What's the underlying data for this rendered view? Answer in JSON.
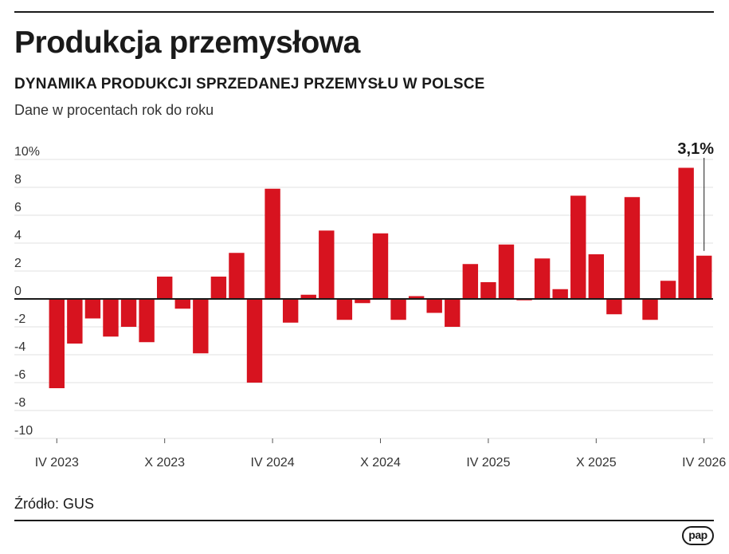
{
  "header": {
    "title": "Produkcja przemysłowa",
    "subtitle": "DYNAMIKA PRODUKCJI SPRZEDANEJ PRZEMYSŁU W POLSCE",
    "description": "Dane w procentach rok do roku"
  },
  "footer": {
    "source": "Źródło: GUS",
    "logo": "pap"
  },
  "colors": {
    "bar": "#d7131f",
    "grid": "#e2e2e2",
    "axis": "#1a1a1a",
    "text": "#1a1a1a"
  },
  "chart_data": {
    "type": "bar",
    "title": "Produkcja przemysłowa",
    "subtitle": "DYNAMIKA PRODUKCJI SPRZEDANEJ PRZEMYSŁU W POLSCE",
    "ylabel": "Dane w procentach rok do roku",
    "xlabel": "",
    "ylim": [
      -10,
      10
    ],
    "yticks": [
      10,
      8,
      6,
      4,
      2,
      0,
      -2,
      -4,
      -6,
      -8,
      -10
    ],
    "ytick_labels": [
      "10%",
      "8",
      "6",
      "4",
      "2",
      "0",
      "-2",
      "-4",
      "-6",
      "-8",
      "-10"
    ],
    "grid": true,
    "legend": "none",
    "xtick_labels": [
      {
        "label": "IV 2023",
        "index": 0
      },
      {
        "label": "X 2023",
        "index": 6
      },
      {
        "label": "IV 2024",
        "index": 12
      },
      {
        "label": "X 2024",
        "index": 18
      },
      {
        "label": "IV 2025",
        "index": 24
      },
      {
        "label": "X 2025",
        "index": 30
      },
      {
        "label": "IV 2026",
        "index": 36
      }
    ],
    "values": [
      -6.4,
      -3.2,
      -1.4,
      -2.7,
      -2.0,
      -3.1,
      1.6,
      -0.7,
      -3.9,
      1.6,
      3.3,
      -6.0,
      7.9,
      -1.7,
      0.3,
      4.9,
      -1.5,
      -0.3,
      4.7,
      -1.5,
      0.2,
      -1.0,
      -2.0,
      2.5,
      1.2,
      3.9,
      -0.1,
      2.9,
      0.7,
      7.4,
      3.2,
      -1.1,
      7.3,
      -1.5,
      1.3,
      9.4,
      3.1
    ],
    "annotations": [
      {
        "text": "3,1%",
        "index": 36,
        "value": 3.1
      }
    ]
  }
}
